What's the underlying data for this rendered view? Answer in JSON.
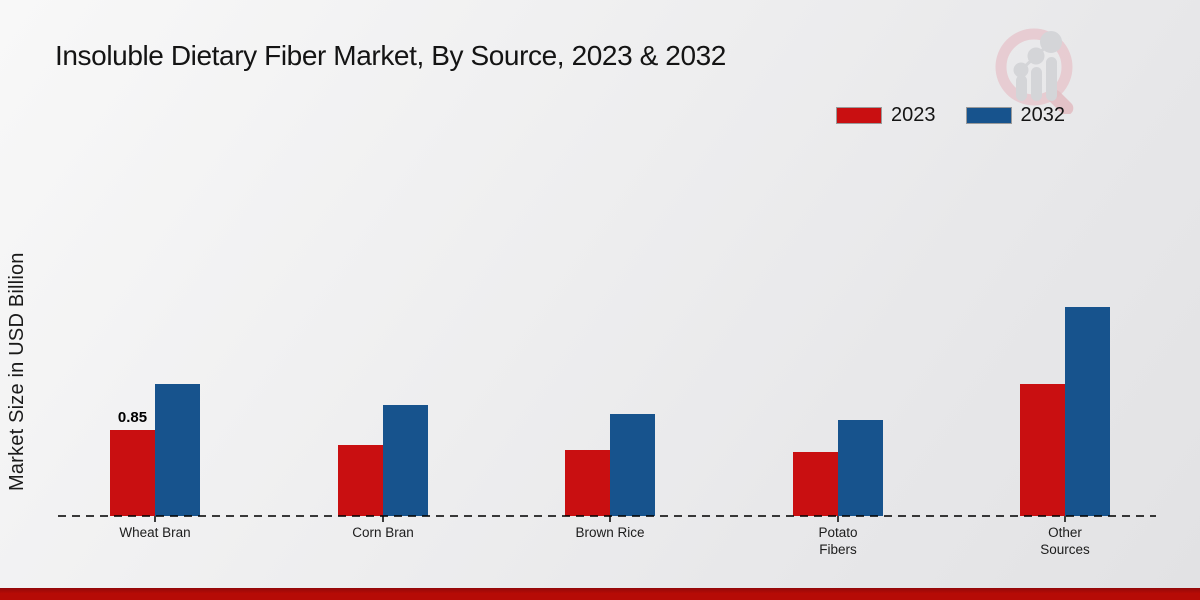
{
  "header": {
    "title": "Insoluble Dietary Fiber Market, By Source, 2023 & 2032"
  },
  "legend": {
    "items": [
      {
        "label": "2023",
        "color": "#c90f11"
      },
      {
        "label": "2032",
        "color": "#17538d"
      }
    ]
  },
  "chart_data": {
    "type": "bar",
    "title": "Insoluble Dietary Fiber Market, By Source, 2023 & 2032",
    "xlabel": "",
    "ylabel": "Market Size in USD Billion",
    "unit": "USD Billion",
    "categories": [
      "Wheat Bran",
      "Corn Bran",
      "Brown Rice",
      "Potato Fibers",
      "Other Sources"
    ],
    "category_display_lines": [
      [
        "Wheat Bran"
      ],
      [
        "Corn Bran"
      ],
      [
        "Brown Rice"
      ],
      [
        "Potato",
        "Fibers"
      ],
      [
        "Other",
        "Sources"
      ]
    ],
    "series": [
      {
        "name": "2023",
        "color": "#c90f11",
        "values": [
          0.85,
          0.7,
          0.65,
          0.63,
          1.3
        ]
      },
      {
        "name": "2032",
        "color": "#17538d",
        "values": [
          1.3,
          1.1,
          1.01,
          0.95,
          2.07
        ]
      }
    ],
    "annotations": [
      {
        "series": "2023",
        "category": "Wheat Bran",
        "text": "0.85"
      }
    ],
    "ylim": [
      0,
      2.3
    ],
    "grid": false,
    "axis_style": "dashed-baseline-only",
    "legend_position": "top-right"
  },
  "branding": {
    "logo": "magnifier-bar-chart-logo",
    "footer_bar_color": "#b60b06"
  }
}
